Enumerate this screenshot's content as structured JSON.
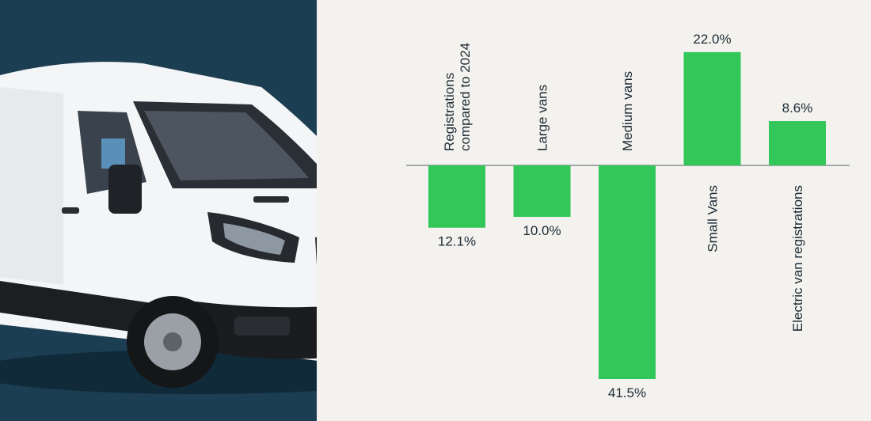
{
  "colors": {
    "background": "#f3f2ee",
    "photo_panel": "#1b3e52",
    "bar": "#33c659",
    "text": "#1c2a33"
  },
  "photo": {
    "subject": "white-van-icon"
  },
  "chart_data": {
    "type": "bar",
    "categories": [
      [
        "Registrations",
        "compared to 2024"
      ],
      [
        "Large vans"
      ],
      [
        "Medium vans"
      ],
      [
        "Small Vans"
      ],
      [
        "Electric van registrations"
      ]
    ],
    "values": [
      -12.1,
      -10.0,
      -41.5,
      22.0,
      8.6
    ],
    "data_labels": [
      "12.1%",
      "10.0%",
      "41.5%",
      "22.0%",
      "8.6%"
    ],
    "units": "%",
    "ylim": [
      -43,
      24
    ],
    "grid": false,
    "legend": "none"
  }
}
